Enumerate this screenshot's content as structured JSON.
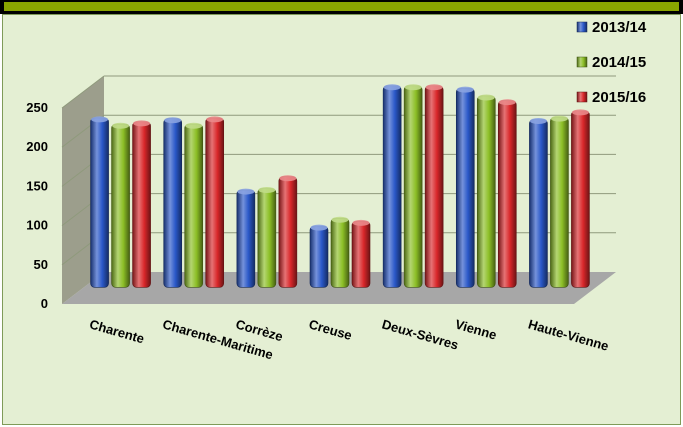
{
  "chart_data": {
    "type": "bar",
    "title": "",
    "xlabel": "",
    "ylabel": "",
    "ylim": [
      0,
      250
    ],
    "yticks": [
      0,
      50,
      100,
      150,
      200,
      250
    ],
    "grid": true,
    "legend_position": "top-right",
    "categories": [
      "Charente",
      "Charente-Maritime",
      "Corrèze",
      "Creuse",
      "Deux-Sèvres",
      "Vienne",
      "Haute-Vienne"
    ],
    "series": [
      {
        "name": "2013/14",
        "color": "#2a58c8",
        "values": [
          216,
          215,
          124,
          78,
          257,
          254,
          214
        ]
      },
      {
        "name": "2014/15",
        "color": "#8cbf26",
        "values": [
          208,
          208,
          126,
          88,
          257,
          244,
          217
        ]
      },
      {
        "name": "2015/16",
        "color": "#d9272a",
        "values": [
          211,
          216,
          141,
          84,
          257,
          238,
          225
        ]
      }
    ]
  },
  "colors": {
    "panel_background": "#e4efd3",
    "side_wall": "#9c9e8c",
    "floor": "#a7a7a7"
  }
}
